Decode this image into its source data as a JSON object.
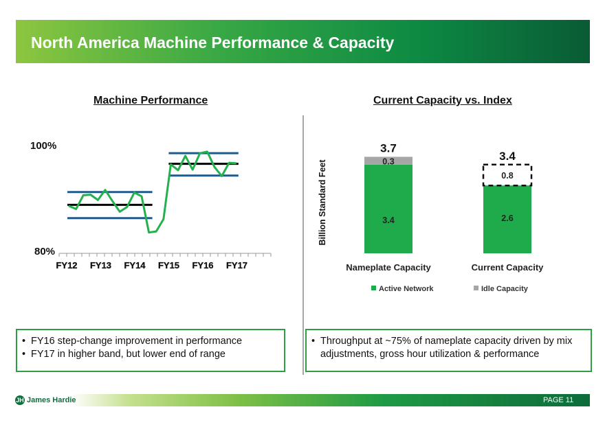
{
  "header": {
    "title": "North America Machine Performance & Capacity"
  },
  "left_chart_title": "Machine Performance",
  "right_chart_title": "Current Capacity vs. Index",
  "chart_data": [
    {
      "type": "line",
      "title": "Machine Performance",
      "ylabel_top": "100%",
      "ylabel_bottom": "80%",
      "ylim": [
        80,
        100
      ],
      "x_labels": [
        "FY12",
        "FY13",
        "FY14",
        "FY15",
        "FY16",
        "FY17"
      ],
      "series": [
        {
          "name": "Performance",
          "color": "#22b14c",
          "values": [
            88.4,
            87.8,
            90.4,
            90.5,
            89.5,
            91.4,
            89.3,
            87.3,
            88.2,
            90.9,
            90.2,
            83.4,
            83.6,
            85.9,
            96.2,
            95.1,
            97.8,
            95.2,
            98.3,
            98.6,
            95.7,
            94.0,
            96.5,
            96.4
          ]
        }
      ],
      "bands": [
        {
          "period": "FY12-FY15",
          "upper": 91.0,
          "mean": 88.6,
          "lower": 86.1
        },
        {
          "period": "FY16-FY17",
          "upper": 98.3,
          "mean": 96.3,
          "lower": 94.1
        }
      ]
    },
    {
      "type": "bar",
      "stacked": true,
      "title": "Current Capacity vs. Index",
      "ylabel": "Billion Standard Feet",
      "categories": [
        "Nameplate Capacity",
        "Current Capacity"
      ],
      "series": [
        {
          "name": "Active Network",
          "color": "#1faa4b",
          "values": [
            3.4,
            2.6
          ]
        },
        {
          "name": "Idle Capacity",
          "color": "#a6a6a6",
          "values": [
            0.3,
            0.8
          ]
        }
      ],
      "segment_labels": [
        [
          "3.4",
          "0.3"
        ],
        [
          "2.6",
          "0.8"
        ]
      ],
      "totals": [
        "3.7",
        "3.4"
      ]
    }
  ],
  "notes": {
    "left": [
      "FY16 step-change improvement in performance",
      "FY17 in higher band, but lower end of range"
    ],
    "right": [
      "Throughput at ~75% of nameplate capacity driven by mix adjustments, gross hour utilization & performance"
    ]
  },
  "footer": {
    "logo_text": "James Hardie",
    "page_label": "PAGE  11"
  },
  "colors": {
    "accent": "#2e9e45",
    "band": "#1f5a8a"
  }
}
